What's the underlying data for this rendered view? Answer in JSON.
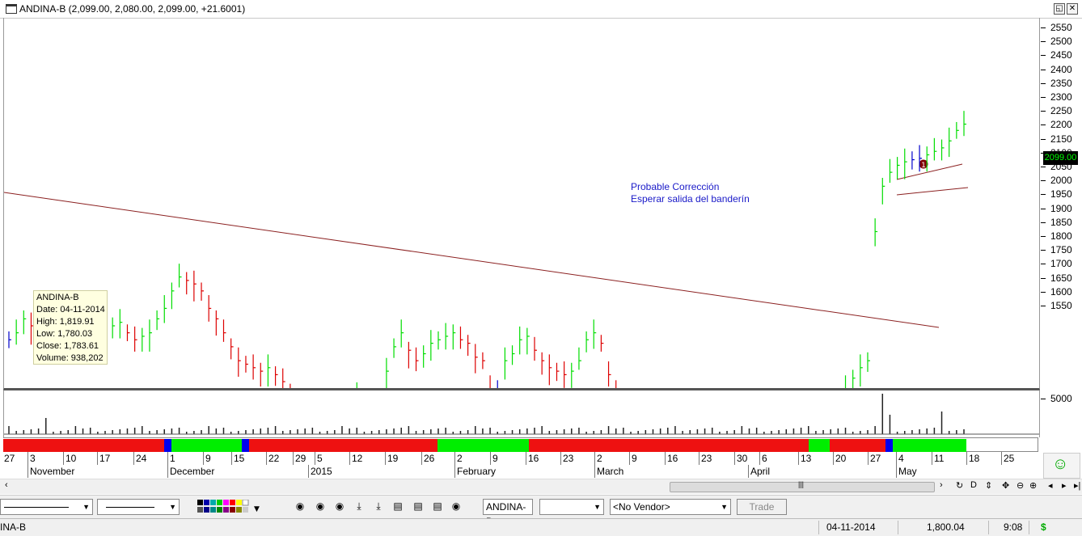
{
  "window": {
    "title": "ANDINA-B (2,099.00, 2,080.00, 2,099.00, +21.6001)"
  },
  "price_axis": {
    "ticks": [
      "2550",
      "2500",
      "2450",
      "2400",
      "2350",
      "2300",
      "2250",
      "2200",
      "2150",
      "2100",
      "2050",
      "2000",
      "1950",
      "1900",
      "1850",
      "1800",
      "1750",
      "1700",
      "1650",
      "1600",
      "1550"
    ],
    "last_price": "2099.00"
  },
  "volume_axis": {
    "tick": "5000"
  },
  "annotations": {
    "note_line1": "Probable Corrección",
    "note_line2": "Esperar salida del banderín",
    "marker": "1"
  },
  "data_window": {
    "symbol": "ANDINA-B",
    "date": "Date: 04-11-2014",
    "high": "High: 1,819.91",
    "low": "Low: 1,780.03",
    "close": "Close: 1,783.61",
    "volume": "Volume: 938,202"
  },
  "date_axis": {
    "days": [
      "27",
      "3",
      "10",
      "17",
      "24",
      "1",
      "9",
      "15",
      "22",
      "29",
      "5",
      "12",
      "19",
      "26",
      "2",
      "9",
      "16",
      "23",
      "2",
      "9",
      "16",
      "23",
      "30",
      "6",
      "13",
      "20",
      "27",
      "4",
      "11",
      "18",
      "25"
    ],
    "months": [
      "November",
      "December",
      "2015",
      "February",
      "March",
      "April",
      "May"
    ]
  },
  "toolbar": {
    "symbol_field": "ANDINA-B",
    "vendor_select": "<No Vendor>",
    "trade_button": "Trade"
  },
  "statusbar": {
    "symbol": "INA-B",
    "date": "04-11-2014",
    "price": "1,800.04",
    "time": "9:08",
    "currency": "$"
  },
  "colors": {
    "up": "#00dd00",
    "down": "#dd0000",
    "neutral": "#0000cc",
    "trendline": "#8b2020"
  }
}
